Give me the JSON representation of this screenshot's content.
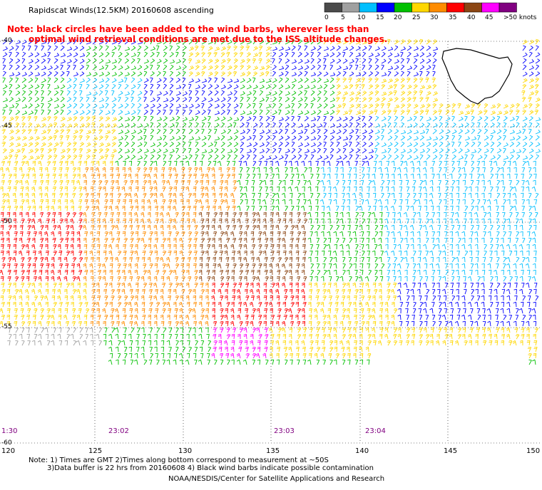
{
  "title": "Rapidscat Winds(12.5KM) 20160608 ascending",
  "note": {
    "line1": "Note: black circles have been added to the wind barbs, wherever less than",
    "line2": "optimal wind retrieval conditions are met due to the ISS altitude changes."
  },
  "legend": {
    "labels": [
      "0",
      "5",
      "10",
      "15",
      "20",
      "25",
      "30",
      "35",
      "40",
      "45",
      ">50 knots"
    ],
    "colors": [
      "#4a4a4a",
      "#a0a0a0",
      "#00bfff",
      "#0000ff",
      "#00c000",
      "#ffd700",
      "#ff8c00",
      "#ff0000",
      "#8b4513",
      "#ff00ff",
      "#800080"
    ]
  },
  "latitudes": [
    "-40",
    "-45",
    "-50",
    "-55",
    "-60"
  ],
  "longitudes": [
    "120",
    "125",
    "130",
    "135",
    "140",
    "145",
    "150"
  ],
  "times": [
    "1:30",
    "23:02",
    "23:03",
    "23:04"
  ],
  "footer": {
    "line1": "Note: 1) Times are GMT 2)Times along bottom correspond to measurement at ~50S",
    "line2": "3)Data buffer is 22 hrs from 20160608 4) Black wind barbs indicate possible contamination",
    "line3": "NOAA/NESDIS/Center for Satellite Applications and Research"
  }
}
